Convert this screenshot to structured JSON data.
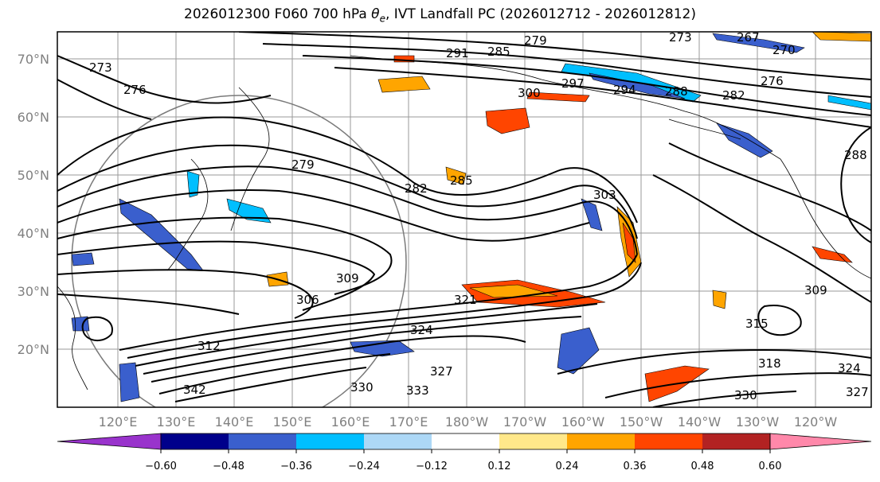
{
  "title": "2026012300 F060 700 hPa θe, IVT Landfall PC (2026012712 - 2026012812)",
  "title_parts": {
    "prefix": "2026012300 F060 700 hPa ",
    "theta": "θ",
    "sub": "e",
    "suffix": ", IVT Landfall PC (2026012712 - 2026012812)"
  },
  "lat_labels": [
    "70°N",
    "60°N",
    "50°N",
    "40°N",
    "30°N",
    "20°N"
  ],
  "lon_labels": [
    "120°E",
    "130°E",
    "140°E",
    "150°E",
    "160°E",
    "170°E",
    "180°W",
    "170°W",
    "160°W",
    "150°W",
    "140°W",
    "130°W",
    "120°W"
  ],
  "contour_labels": [
    "279",
    "285",
    "291",
    "297",
    "294",
    "288",
    "273",
    "267",
    "270",
    "276",
    "282",
    "300",
    "273",
    "276",
    "279",
    "282",
    "285",
    "303",
    "306",
    "309",
    "312",
    "321",
    "324",
    "327",
    "330",
    "333",
    "342",
    "318",
    "324",
    "327",
    "330",
    "315",
    "309",
    "288"
  ],
  "colorbar": {
    "ticks": [
      "−0.60",
      "−0.48",
      "−0.36",
      "−0.24",
      "−0.12",
      "0.12",
      "0.24",
      "0.36",
      "0.48",
      "0.60"
    ],
    "colors": [
      "#9933cc",
      "#00008b",
      "#3a5fcd",
      "#00bfff",
      "#add8f6",
      "#ffffff",
      "#ffe88a",
      "#ffa500",
      "#ff4500",
      "#b22222",
      "#ff88aa"
    ]
  }
}
